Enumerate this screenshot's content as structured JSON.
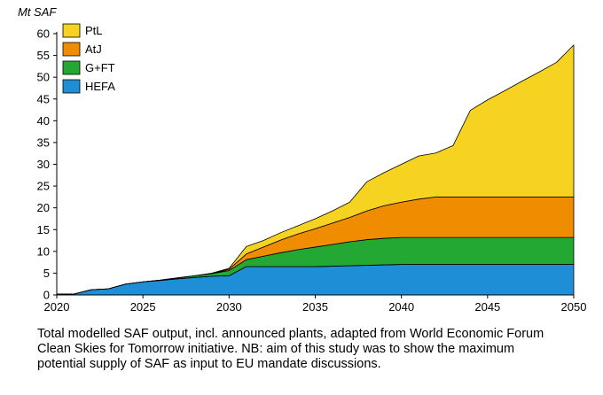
{
  "chart_data": {
    "type": "area",
    "stacked": true,
    "ylabel": "Mt SAF",
    "xlabel": "",
    "xlim": [
      2020,
      2050
    ],
    "ylim": [
      0,
      60
    ],
    "xticks": [
      2020,
      2025,
      2030,
      2035,
      2040,
      2045,
      2050
    ],
    "yticks": [
      0,
      5,
      10,
      15,
      20,
      25,
      30,
      35,
      40,
      45,
      50,
      55,
      60
    ],
    "grid": false,
    "legend_position": "top-left",
    "x": [
      2020,
      2021,
      2022,
      2023,
      2024,
      2025,
      2026,
      2027,
      2028,
      2029,
      2030,
      2031,
      2032,
      2033,
      2034,
      2035,
      2036,
      2037,
      2038,
      2039,
      2040,
      2041,
      2042,
      2043,
      2044,
      2045,
      2046,
      2047,
      2048,
      2049,
      2050
    ],
    "series": [
      {
        "name": "HEFA",
        "color": "#1e8fd6",
        "values": [
          0.2,
          0.2,
          1.2,
          1.4,
          2.5,
          3.0,
          3.3,
          3.7,
          4.0,
          4.3,
          4.4,
          6.5,
          6.5,
          6.5,
          6.5,
          6.5,
          6.6,
          6.7,
          6.8,
          6.9,
          7.0,
          7.0,
          7.0,
          7.0,
          7.0,
          7.0,
          7.0,
          7.0,
          7.0,
          7.0,
          7.0
        ]
      },
      {
        "name": "G+FT",
        "color": "#22a833",
        "values": [
          0,
          0,
          0,
          0,
          0,
          0,
          0.1,
          0.2,
          0.4,
          0.6,
          1.2,
          1.6,
          2.4,
          3.2,
          3.9,
          4.5,
          5.0,
          5.5,
          5.9,
          6.1,
          6.2,
          6.2,
          6.2,
          6.2,
          6.2,
          6.2,
          6.2,
          6.2,
          6.2,
          6.2,
          6.2
        ]
      },
      {
        "name": "AtJ",
        "color": "#f08c00",
        "values": [
          0,
          0,
          0,
          0,
          0,
          0,
          0,
          0,
          0,
          0,
          0.3,
          1.3,
          2.1,
          2.9,
          3.6,
          4.2,
          4.9,
          5.6,
          6.6,
          7.5,
          8.1,
          8.8,
          9.3,
          9.3,
          9.3,
          9.3,
          9.3,
          9.3,
          9.3,
          9.3,
          9.3
        ]
      },
      {
        "name": "PtL",
        "color": "#f5d320",
        "values": [
          0,
          0,
          0,
          0,
          0,
          0,
          0,
          0,
          0,
          0.1,
          0.2,
          1.7,
          1.5,
          1.7,
          1.9,
          2.3,
          2.8,
          3.5,
          6.7,
          7.6,
          8.7,
          9.9,
          10.1,
          11.8,
          19.9,
          22.3,
          24.4,
          26.6,
          28.7,
          30.9,
          34.9
        ]
      }
    ]
  },
  "caption": {
    "line1": "Total modelled SAF output, incl. announced plants, adapted from World Economic Forum",
    "line2": "Clean Skies for Tomorrow initiative. NB: aim of this study was to show the maximum",
    "line3": "potential supply of SAF as input to EU mandate discussions."
  }
}
